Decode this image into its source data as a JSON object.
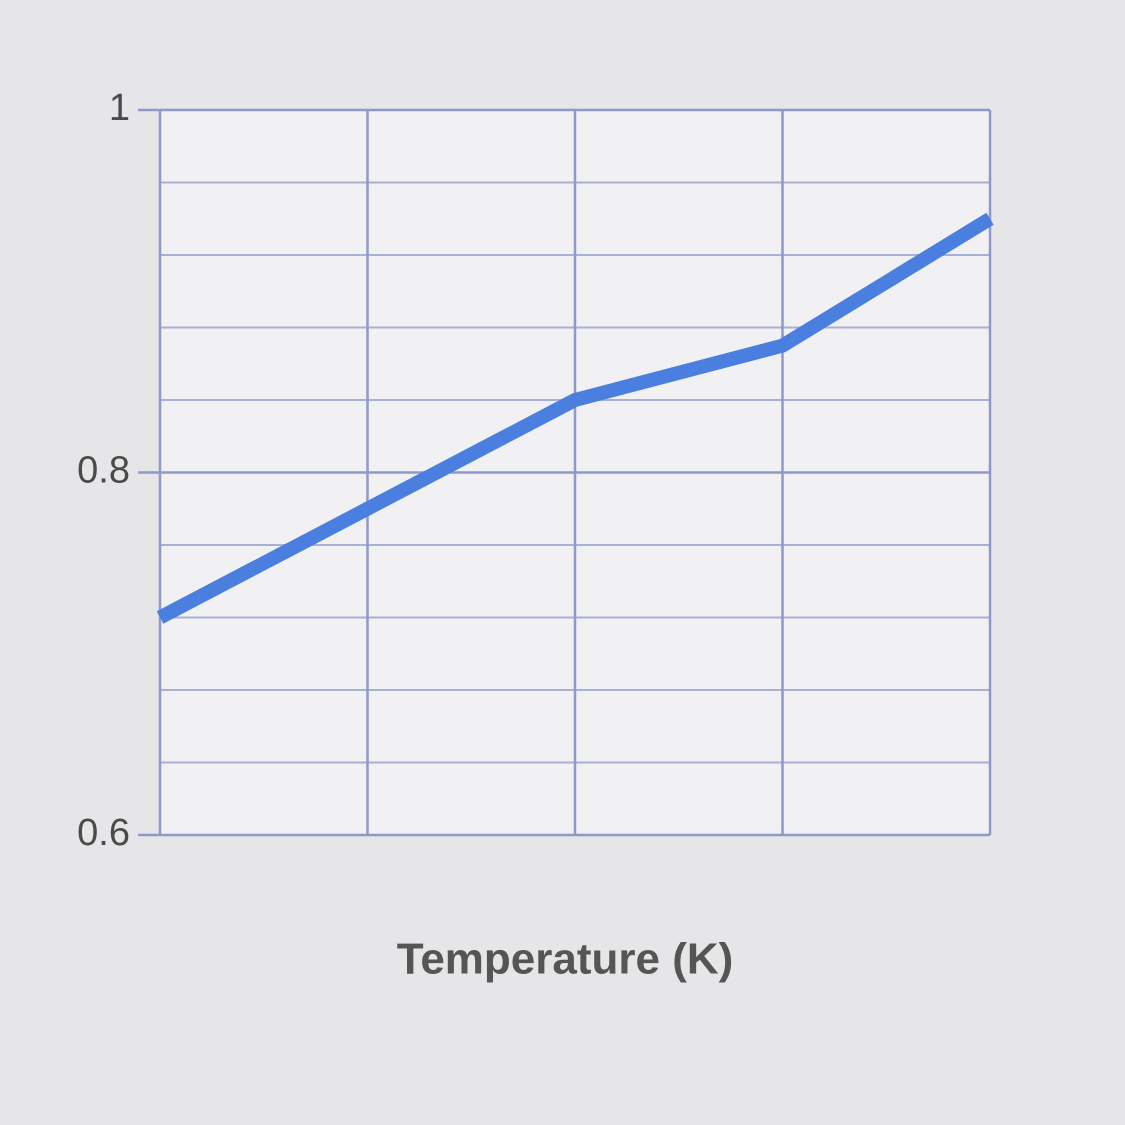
{
  "chart_data": {
    "type": "line",
    "x_label": "Temperature (K)",
    "categories": [
      null,
      null,
      null,
      null,
      null
    ],
    "values": [
      0.72,
      0.78,
      0.84,
      0.87,
      0.94
    ],
    "color": "#4a7fe0",
    "ylim": [
      0.6,
      1
    ],
    "yticks": [
      0.6,
      0.8,
      1
    ],
    "minor_yticks": [
      0.64,
      0.68,
      0.72,
      0.76,
      0.84,
      0.88,
      0.92,
      0.96
    ],
    "grid": true
  }
}
